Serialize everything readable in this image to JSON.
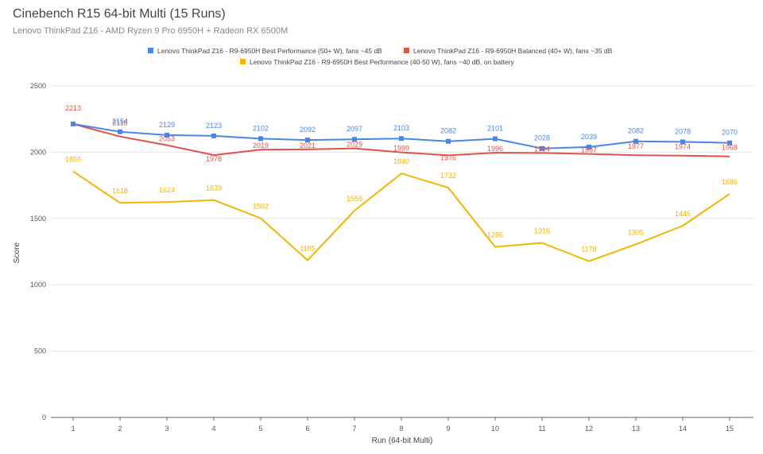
{
  "chart_data": {
    "type": "line",
    "title": "Cinebench R15 64-bit Multi (15 Runs)",
    "subtitle": "Lenovo ThinkPad Z16 - AMD Ryzen 9 Pro 6950H  + Radeon RX 6500M",
    "xlabel": "Run (64-bit Multi)",
    "ylabel": "Score",
    "ylim": [
      0,
      2500
    ],
    "yticks": [
      0,
      500,
      1000,
      1500,
      2000,
      2500
    ],
    "categories": [
      "1",
      "2",
      "3",
      "4",
      "5",
      "6",
      "7",
      "8",
      "9",
      "10",
      "11",
      "12",
      "13",
      "14",
      "15"
    ],
    "grid": true,
    "legend_position": "top",
    "series": [
      {
        "name": "Lenovo ThinkPad Z16 - R9-6950H Best Performance (50+ W), fans ~45 dB",
        "color": "#4a86e8",
        "markers": true,
        "values": [
          2213,
          2154,
          2129,
          2123,
          2102,
          2092,
          2097,
          2103,
          2082,
          2101,
          2028,
          2039,
          2082,
          2078,
          2070
        ]
      },
      {
        "name": "Lenovo ThinkPad Z16 - R9-6950H Balanced (40+ W), fans ~35 dB",
        "color": "#e0524a",
        "markers": false,
        "values": [
          2213,
          2118,
          2053,
          1978,
          2019,
          2021,
          2029,
          1999,
          1976,
          1996,
          1994,
          1987,
          1977,
          1974,
          1968
        ]
      },
      {
        "name": "Lenovo ThinkPad Z16 - R9-6950H Best Performance (40-50 W), fans ~40 dB, on battery",
        "color": "#f4b400",
        "markers": false,
        "values": [
          1855,
          1618,
          1624,
          1639,
          1502,
          1185,
          1559,
          1840,
          1732,
          1286,
          1316,
          1178,
          1305,
          1445,
          1686
        ]
      }
    ]
  }
}
